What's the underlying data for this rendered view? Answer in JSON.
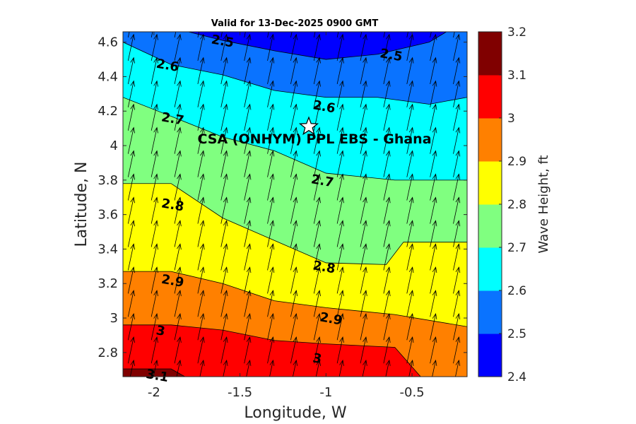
{
  "chart_data": {
    "type": "heatmap",
    "title": "Valid for 13-Dec-2025 0900 GMT",
    "xlabel": "Longitude, W",
    "ylabel": "Latitude, N",
    "xlim": [
      -2.18,
      -0.18
    ],
    "ylim": [
      2.66,
      4.66
    ],
    "xticks": [
      "-2",
      "-1.5",
      "-1",
      "-0.5"
    ],
    "yticks": [
      "2.8",
      "3",
      "3.2",
      "3.4",
      "3.6",
      "3.8",
      "4",
      "4.2",
      "4.4",
      "4.6"
    ],
    "colorbar": {
      "label": "Wave Height, ft",
      "min": 2.4,
      "max": 3.2,
      "ticks": [
        "2.4",
        "2.5",
        "2.6",
        "2.7",
        "2.8",
        "2.9",
        "3",
        "3.1",
        "3.2"
      ],
      "colors": [
        "#0000ff",
        "#0a73ff",
        "#00ffff",
        "#80ff80",
        "#ffff00",
        "#ff8000",
        "#ff0000",
        "#800000"
      ]
    },
    "contour_lines": [
      {
        "level": 3.1,
        "points": [
          [
            -2.18,
            2.705
          ],
          [
            -1.9,
            2.705
          ],
          [
            -1.82,
            2.66
          ]
        ]
      },
      {
        "level": 3.0,
        "points": [
          [
            -2.18,
            2.96
          ],
          [
            -1.9,
            2.96
          ],
          [
            -1.6,
            2.93
          ],
          [
            -1.3,
            2.87
          ],
          [
            -1.0,
            2.85
          ],
          [
            -0.6,
            2.83
          ],
          [
            -0.45,
            2.66
          ]
        ]
      },
      {
        "level": 2.9,
        "points": [
          [
            -2.18,
            3.27
          ],
          [
            -1.9,
            3.27
          ],
          [
            -1.6,
            3.2
          ],
          [
            -1.3,
            3.1
          ],
          [
            -1.0,
            3.06
          ],
          [
            -0.6,
            3.02
          ],
          [
            -0.18,
            2.95
          ]
        ]
      },
      {
        "level": 2.8,
        "points": [
          [
            -2.18,
            3.78
          ],
          [
            -1.9,
            3.78
          ],
          [
            -1.6,
            3.58
          ],
          [
            -1.3,
            3.45
          ],
          [
            -1.0,
            3.32
          ],
          [
            -0.65,
            3.31
          ],
          [
            -0.55,
            3.44
          ],
          [
            -0.18,
            3.44
          ]
        ]
      },
      {
        "level": 2.7,
        "points": [
          [
            -2.18,
            4.28
          ],
          [
            -1.9,
            4.17
          ],
          [
            -1.6,
            4.05
          ],
          [
            -1.3,
            3.97
          ],
          [
            -1.0,
            3.84
          ],
          [
            -0.6,
            3.8
          ],
          [
            -0.18,
            3.8
          ]
        ]
      },
      {
        "level": 2.6,
        "points": [
          [
            -2.18,
            4.6
          ],
          [
            -1.9,
            4.47
          ],
          [
            -1.6,
            4.41
          ],
          [
            -1.3,
            4.32
          ],
          [
            -1.0,
            4.28
          ],
          [
            -0.7,
            4.28
          ],
          [
            -0.4,
            4.24
          ],
          [
            -0.18,
            4.28
          ]
        ]
      },
      {
        "level": 2.5,
        "points": [
          [
            -1.8,
            4.66
          ],
          [
            -1.6,
            4.61
          ],
          [
            -1.3,
            4.55
          ],
          [
            -1.0,
            4.5
          ],
          [
            -0.7,
            4.53
          ],
          [
            -0.4,
            4.6
          ],
          [
            -0.3,
            4.66
          ]
        ]
      }
    ],
    "contour_labels": [
      {
        "text": "2.5",
        "x": -1.6,
        "y": 4.61
      },
      {
        "text": "2.5",
        "x": -0.62,
        "y": 4.53
      },
      {
        "text": "2.6",
        "x": -1.92,
        "y": 4.47
      },
      {
        "text": "2.6",
        "x": -1.01,
        "y": 4.23
      },
      {
        "text": "2.7",
        "x": -1.89,
        "y": 4.16
      },
      {
        "text": "2.7",
        "x": -1.02,
        "y": 3.8
      },
      {
        "text": "2.8",
        "x": -1.89,
        "y": 3.66
      },
      {
        "text": "2.8",
        "x": -1.01,
        "y": 3.3
      },
      {
        "text": "2.9",
        "x": -1.89,
        "y": 3.22
      },
      {
        "text": "2.9",
        "x": -0.97,
        "y": 3.0
      },
      {
        "text": "3",
        "x": -1.96,
        "y": 2.93
      },
      {
        "text": "3",
        "x": -1.05,
        "y": 2.77
      },
      {
        "text": "3.1",
        "x": -1.98,
        "y": 2.67
      }
    ],
    "site": {
      "name": "CSA (ONHYM) PPL EBS  - Ghana",
      "lon": -1.1,
      "lat": 4.11
    },
    "wind_arrows": {
      "direction": "north-northeast",
      "grid_lon_step": 0.135,
      "grid_lat_step": 0.135
    }
  }
}
